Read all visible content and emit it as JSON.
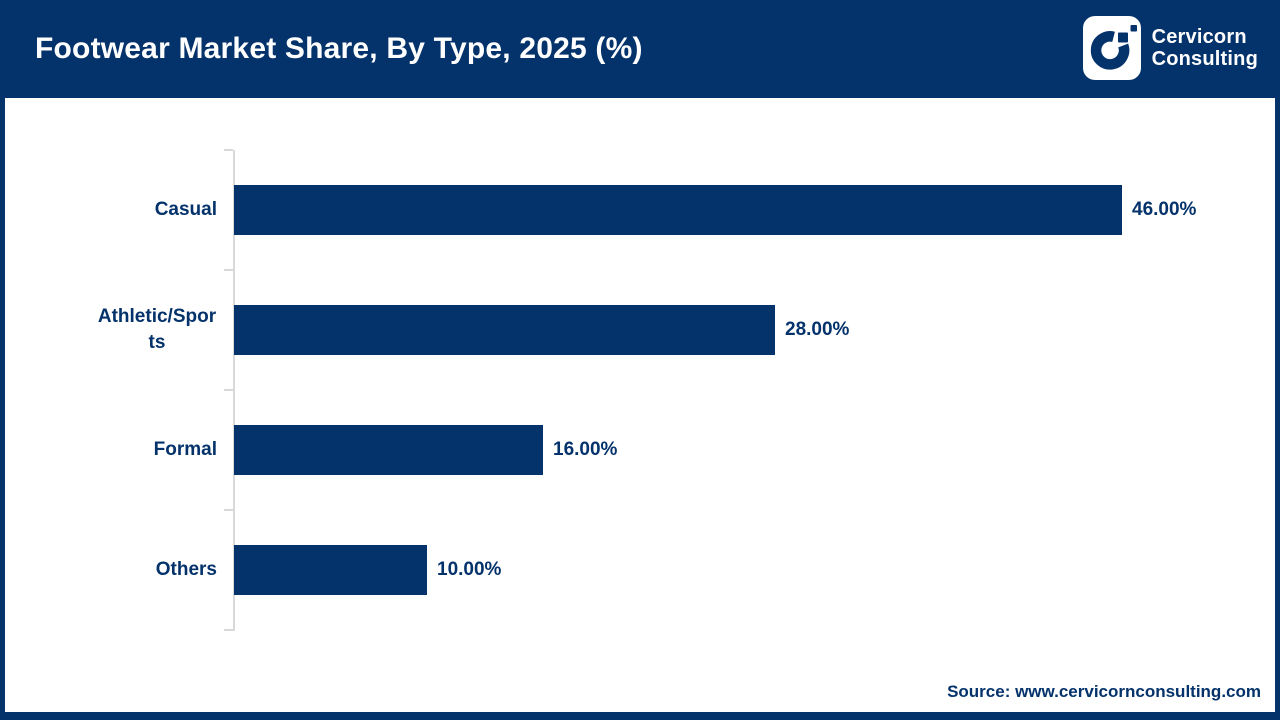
{
  "header": {
    "title": "Footwear Market Share, By Type, 2025 (%)",
    "logo": {
      "icon": "cervicorn-c-logo",
      "name_line1": "Cervicorn",
      "name_line2": "Consulting"
    }
  },
  "chart_data": {
    "type": "bar",
    "orientation": "horizontal",
    "title": "Footwear Market Share, By Type, 2025 (%)",
    "categories": [
      "Casual",
      "Athletic/Sports",
      "Formal",
      "Others"
    ],
    "values": [
      46,
      28,
      16,
      10
    ],
    "value_labels": [
      "46.00%",
      "28.00%",
      "16.00%",
      "10.00%"
    ],
    "unit": "%",
    "xlim": [
      0,
      50
    ],
    "grid": false,
    "legend": false,
    "bar_color": "#04326B",
    "label_color": "#04326B",
    "axis_color": "#D9D9D9"
  },
  "footer": {
    "source": "Source: www.cervicornconsulting.com"
  },
  "colors": {
    "navy": "#04326B",
    "axis_gray": "#D9D9D9",
    "background": "#FFFFFF",
    "title_text": "#FFFFFF"
  }
}
